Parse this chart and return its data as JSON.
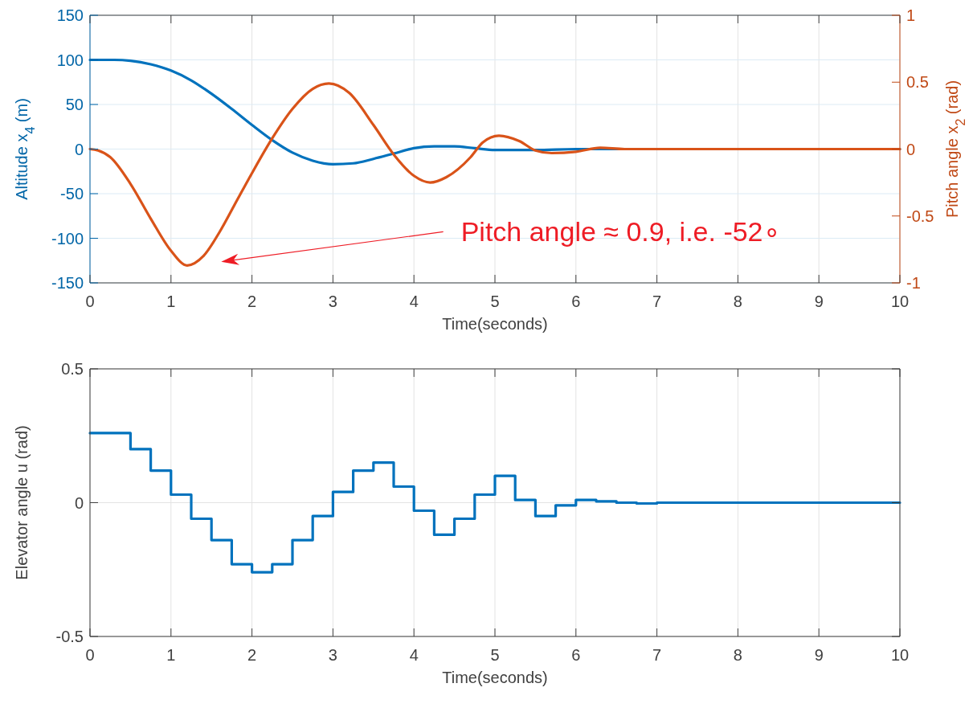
{
  "chart_data": [
    {
      "type": "line",
      "xlabel": "Time(seconds)",
      "ylabel": "Altitude x$_{4}$ (m)",
      "y2label": "Pitch angle x$_{2}$ (rad)",
      "xlim": [
        0,
        10
      ],
      "xticks": [
        0,
        1,
        2,
        3,
        4,
        5,
        6,
        7,
        8,
        9,
        10
      ],
      "ylim": [
        -150,
        150
      ],
      "yticks": [
        -150,
        -100,
        -50,
        0,
        50,
        100,
        150
      ],
      "y2lim": [
        -1,
        1
      ],
      "y2ticks": [
        -1,
        -0.5,
        0,
        0.5,
        1
      ],
      "grid": true,
      "line_style": "solid",
      "series": [
        {
          "color": "#0072bd",
          "x": [
            0,
            0.3,
            0.5,
            0.75,
            1,
            1.25,
            1.5,
            1.75,
            2,
            2.25,
            2.5,
            2.75,
            3,
            3.25,
            3.5,
            3.75,
            4,
            4.25,
            4.5,
            4.75,
            5,
            5.5,
            6,
            6.5,
            7,
            10
          ],
          "values": [
            100,
            100,
            99,
            95,
            88,
            77,
            62,
            45,
            27,
            10,
            -4,
            -13,
            -17,
            -16,
            -11,
            -5,
            1,
            3,
            3,
            1,
            -1,
            -1,
            0,
            0,
            0,
            0
          ]
        },
        {
          "color": "#d95319",
          "axis": "y2",
          "x": [
            0,
            0.1,
            0.25,
            0.5,
            0.75,
            1,
            1.2,
            1.4,
            1.6,
            1.8,
            2,
            2.25,
            2.5,
            2.75,
            2.95,
            3.2,
            3.5,
            3.75,
            4,
            4.2,
            4.4,
            4.7,
            4.85,
            5.05,
            5.3,
            5.5,
            5.7,
            6,
            6.3,
            6.6,
            10
          ],
          "values": [
            0,
            -0.01,
            -0.06,
            -0.26,
            -0.52,
            -0.76,
            -0.87,
            -0.8,
            -0.62,
            -0.4,
            -0.18,
            0.08,
            0.3,
            0.45,
            0.49,
            0.42,
            0.18,
            -0.04,
            -0.2,
            -0.25,
            -0.21,
            -0.06,
            0.05,
            0.1,
            0.06,
            -0.01,
            -0.03,
            -0.02,
            0.01,
            0,
            0
          ]
        }
      ],
      "annotations": [
        "Pitch angle ≈ 0.9, i.e. -52∘"
      ]
    },
    {
      "type": "step",
      "xlabel": "Time(seconds)",
      "ylabel": "Elevator angle u (rad)",
      "xlim": [
        0,
        10
      ],
      "xticks": [
        0,
        1,
        2,
        3,
        4,
        5,
        6,
        7,
        8,
        9,
        10
      ],
      "ylim": [
        -0.5,
        0.5
      ],
      "yticks": [
        -0.5,
        0,
        0.5
      ],
      "grid": true,
      "line_style": "solid",
      "series": [
        {
          "color": "#0072bd",
          "x": [
            0,
            0.5,
            0.75,
            1,
            1.25,
            1.5,
            1.75,
            2,
            2.25,
            2.5,
            2.75,
            3,
            3.25,
            3.5,
            3.75,
            4,
            4.25,
            4.5,
            4.75,
            5,
            5.25,
            5.5,
            5.75,
            6,
            6.25,
            6.5,
            6.75,
            7,
            10
          ],
          "values": [
            0.26,
            0.2,
            0.12,
            0.03,
            -0.06,
            -0.14,
            -0.23,
            -0.26,
            -0.23,
            -0.14,
            -0.05,
            0.04,
            0.12,
            0.15,
            0.06,
            -0.03,
            -0.12,
            -0.06,
            0.03,
            0.1,
            0.01,
            -0.05,
            -0.01,
            0.01,
            0.005,
            0,
            -0.003,
            0,
            0
          ]
        }
      ]
    }
  ]
}
